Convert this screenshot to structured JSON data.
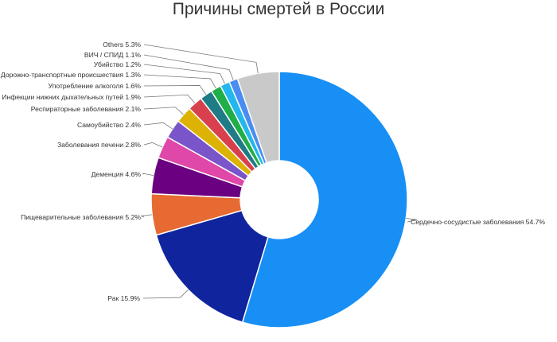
{
  "chart_data": {
    "type": "pie",
    "title": "Причины смертей в России",
    "donut": true,
    "start_angle_deg": 0,
    "direction": "clockwise",
    "slices": [
      {
        "label": "Сердечно-сосудистые заболевания",
        "value": 54.7,
        "display": "54.7%",
        "color": "#178ff5"
      },
      {
        "label": "Рак",
        "value": 15.9,
        "display": "15.9%",
        "color": "#10249e"
      },
      {
        "label": "Пищеварительные заболевания",
        "value": 5.2,
        "display": "5.2%",
        "color": "#e66a32"
      },
      {
        "label": "Деменция",
        "value": 4.6,
        "display": "4.6%",
        "color": "#6b0080"
      },
      {
        "label": "Заболевания печени",
        "value": 2.8,
        "display": "2.8%",
        "color": "#df47a8"
      },
      {
        "label": "Самоубийство",
        "value": 2.4,
        "display": "2.4%",
        "color": "#7a55c9"
      },
      {
        "label": "Респираторные заболевания",
        "value": 2.1,
        "display": "2.1%",
        "color": "#dcb204"
      },
      {
        "label": "Инфекции нижних дыхательных путей",
        "value": 1.9,
        "display": "1.9%",
        "color": "#d9404d"
      },
      {
        "label": "Употребление алкоголя",
        "value": 1.6,
        "display": "1.6%",
        "color": "#1f7c86"
      },
      {
        "label": "Дорожно-транспортные происшествия",
        "value": 1.3,
        "display": "1.3%",
        "color": "#1fae47"
      },
      {
        "label": "Убийство",
        "value": 1.2,
        "display": "1.2%",
        "color": "#22b7ee"
      },
      {
        "label": "ВИЧ / СПИД",
        "value": 1.1,
        "display": "1.1%",
        "color": "#4a8df2"
      },
      {
        "label": "Others",
        "value": 5.3,
        "display": "5.3%",
        "color": "#c9c9c9"
      }
    ]
  }
}
